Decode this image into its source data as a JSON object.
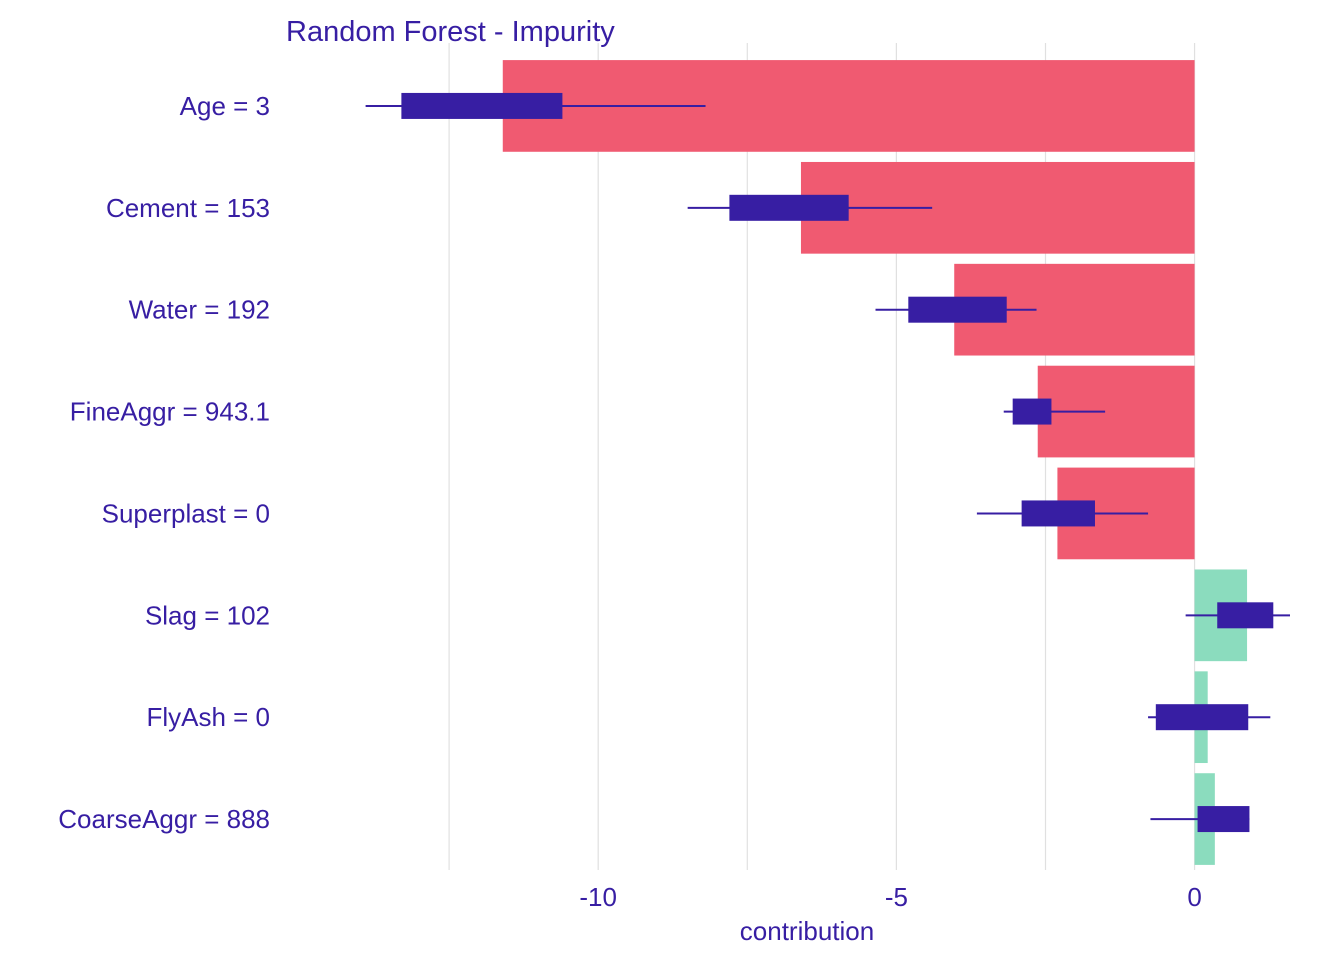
{
  "chart_data": {
    "type": "bar",
    "title": "Random Forest - Impurity",
    "xlabel": "contribution",
    "ylabel": "",
    "xlim": [
      -15.0,
      1.6
    ],
    "x_ticks": [
      -10,
      -5,
      0
    ],
    "x_tick_labels": [
      "-10",
      "-5",
      "0"
    ],
    "grid": "vertical",
    "legend": "none",
    "categories": [
      "Age = 3",
      "Cement = 153",
      "Water = 192",
      "FineAggr = 943.1",
      "Superplast = 0",
      "Slag = 102",
      "FlyAsh = 0",
      "CoarseAggr = 888"
    ],
    "values": [
      -11.6,
      -6.6,
      -4.03,
      -2.63,
      -2.3,
      0.88,
      0.22,
      0.34
    ],
    "boxplots": [
      {
        "whisker_low": -13.9,
        "q1": -13.3,
        "q3": -10.6,
        "whisker_high": -8.2
      },
      {
        "whisker_low": -8.5,
        "q1": -7.8,
        "q3": -5.8,
        "whisker_high": -4.4
      },
      {
        "whisker_low": -5.35,
        "q1": -4.8,
        "q3": -3.15,
        "whisker_high": -2.65
      },
      {
        "whisker_low": -3.2,
        "q1": -3.05,
        "q3": -2.4,
        "whisker_high": -1.5
      },
      {
        "whisker_low": -3.65,
        "q1": -2.9,
        "q3": -1.67,
        "whisker_high": -0.78
      },
      {
        "whisker_low": -0.15,
        "q1": 0.38,
        "q3": 1.32,
        "whisker_high": 1.6
      },
      {
        "whisker_low": -0.78,
        "q1": -0.65,
        "q3": 0.9,
        "whisker_high": 1.27
      },
      {
        "whisker_low": -0.74,
        "q1": 0.05,
        "q3": 0.92,
        "whisker_high": 0.92
      }
    ],
    "colors": {
      "negative": "#F05A71",
      "positive": "#8BDCBE",
      "boxplot": "#371EA3",
      "text": "#371EA3",
      "grid": "#E0E0E0"
    }
  }
}
